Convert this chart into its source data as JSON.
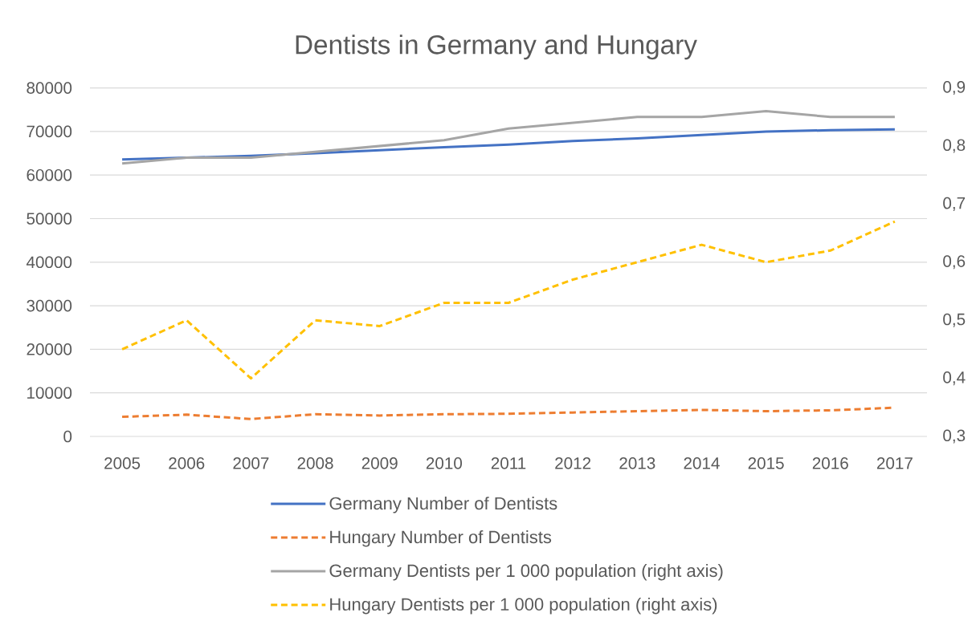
{
  "chart_data": {
    "type": "line",
    "title": "Dentists in Germany and Hungary",
    "categories": [
      "2005",
      "2006",
      "2007",
      "2008",
      "2009",
      "2010",
      "2011",
      "2012",
      "2013",
      "2014",
      "2015",
      "2016",
      "2017"
    ],
    "series": [
      {
        "name": "Germany Number of Dentists",
        "color": "#4472c4",
        "line_style": "solid",
        "values": [
          63600,
          64000,
          64400,
          65000,
          65700,
          66400,
          67000,
          67800,
          68400,
          69200,
          70000,
          70300,
          70500
        ]
      },
      {
        "name": "Hungary Number of Dentists",
        "color": "#ed7d31",
        "line_style": "dashed",
        "values": [
          4500,
          5000,
          4000,
          5100,
          4800,
          5100,
          5200,
          5500,
          5800,
          6100,
          5800,
          6000,
          6600
        ]
      },
      {
        "name": "Germany Dentists per 1 000 population (right axis)",
        "color": "#a5a5a5",
        "axis": "y2",
        "line_style": "solid",
        "values": [
          0.77,
          0.78,
          0.78,
          0.79,
          0.8,
          0.81,
          0.83,
          0.84,
          0.85,
          0.85,
          0.86,
          0.85,
          0.85
        ]
      },
      {
        "name": "Hungary Dentists per 1 000 population (right axis)",
        "color": "#ffc000",
        "axis": "y2",
        "line_style": "dashed",
        "values": [
          0.45,
          0.5,
          0.4,
          0.5,
          0.49,
          0.53,
          0.53,
          0.57,
          0.6,
          0.63,
          0.6,
          0.62,
          0.67
        ]
      }
    ],
    "ylim": [
      0,
      80000
    ],
    "yticks": [
      0,
      10000,
      20000,
      30000,
      40000,
      50000,
      60000,
      70000,
      80000
    ],
    "y2lim": [
      0.3,
      0.9
    ],
    "y2ticks": [
      {
        "value": 0.3,
        "label": "0,3"
      },
      {
        "value": 0.4,
        "label": "0,4"
      },
      {
        "value": 0.5,
        "label": "0,5"
      },
      {
        "value": 0.6,
        "label": "0,6"
      },
      {
        "value": 0.7,
        "label": "0,7"
      },
      {
        "value": 0.8,
        "label": "0,8"
      },
      {
        "value": 0.9,
        "label": "0,9"
      }
    ],
    "grid": "y",
    "legend": "bottom"
  }
}
